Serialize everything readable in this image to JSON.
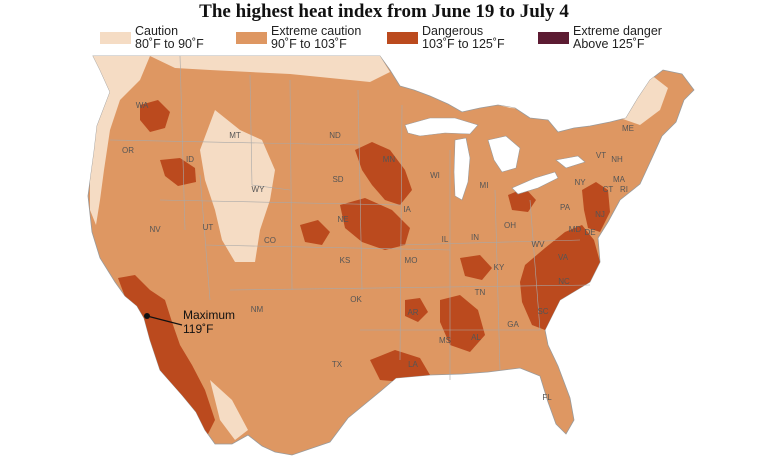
{
  "title": "The highest heat index from June 19 to July 4",
  "legend": [
    {
      "label": "Caution",
      "range": "80˚F to 90˚F",
      "color": "#f5dcc4"
    },
    {
      "label": "Extreme caution",
      "range": "90˚F to 103˚F",
      "color": "#de9762"
    },
    {
      "label": "Dangerous",
      "range": "103˚F to 125˚F",
      "color": "#bb4a1e"
    },
    {
      "label": "Extreme danger",
      "range": "Above 125˚F",
      "color": "#5c1b32"
    }
  ],
  "annotation": {
    "line1": "Maximum",
    "line2": "119˚F"
  },
  "states": {
    "WA": "WA",
    "OR": "OR",
    "ID": "ID",
    "MT": "MT",
    "WY": "WY",
    "NV": "NV",
    "UT": "UT",
    "CO": "CO",
    "ND": "ND",
    "SD": "SD",
    "NE": "NE",
    "KS": "KS",
    "OK": "OK",
    "TX": "TX",
    "NM": "NM",
    "MN": "MN",
    "IA": "IA",
    "MO": "MO",
    "AR": "AR",
    "LA": "LA",
    "WI": "WI",
    "IL": "IL",
    "MI": "MI",
    "IN": "IN",
    "OH": "OH",
    "KY": "KY",
    "TN": "TN",
    "MS": "MS",
    "AL": "AL",
    "GA": "GA",
    "FL": "FL",
    "SC": "SC",
    "NC": "NC",
    "VA": "VA",
    "WV": "WV",
    "PA": "PA",
    "NY": "NY",
    "VT": "VT",
    "NH": "NH",
    "ME": "ME",
    "MA": "MA",
    "CT": "CT",
    "RI": "RI",
    "NJ": "NJ",
    "DE": "DE",
    "MD": "MD"
  },
  "colors": {
    "caution": "#f5dcc4",
    "extreme_caution": "#de9762",
    "dangerous": "#bb4a1e",
    "extreme_danger": "#5c1b32",
    "no_data": "#ffffff",
    "borders": "#888888",
    "water": "#ffffff"
  }
}
